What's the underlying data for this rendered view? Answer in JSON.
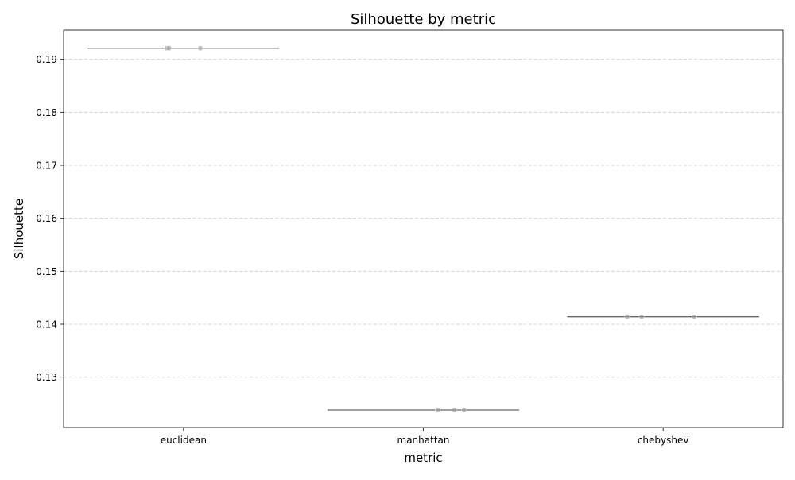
{
  "chart_data": {
    "type": "box-strip",
    "title": "Silhouette by metric",
    "xlabel": "metric",
    "ylabel": "Silhouette",
    "categories": [
      "euclidean",
      "manhattan",
      "chebyshev"
    ],
    "ylim": [
      0.1205,
      0.1955
    ],
    "yticks": [
      0.13,
      0.14,
      0.15,
      0.16,
      0.17,
      0.18,
      0.19
    ],
    "ytick_labels": [
      "0.13",
      "0.14",
      "0.15",
      "0.16",
      "0.17",
      "0.18",
      "0.19"
    ],
    "grid": "y-dashed",
    "medians": [
      0.1921,
      0.1238,
      0.1414
    ],
    "points": [
      {
        "category": "euclidean",
        "y": 0.1921,
        "jitter": -0.07
      },
      {
        "category": "euclidean",
        "y": 0.1921,
        "jitter": -0.06
      },
      {
        "category": "euclidean",
        "y": 0.1921,
        "jitter": 0.07
      },
      {
        "category": "manhattan",
        "y": 0.1238,
        "jitter": 0.06
      },
      {
        "category": "manhattan",
        "y": 0.1238,
        "jitter": 0.13
      },
      {
        "category": "manhattan",
        "y": 0.1238,
        "jitter": 0.17
      },
      {
        "category": "chebyshev",
        "y": 0.1414,
        "jitter": -0.15
      },
      {
        "category": "chebyshev",
        "y": 0.1414,
        "jitter": -0.09
      },
      {
        "category": "chebyshev",
        "y": 0.1414,
        "jitter": 0.13
      }
    ],
    "colors": {
      "median_line": "#666666",
      "points": "#999999",
      "grid": "#cccccc"
    }
  }
}
